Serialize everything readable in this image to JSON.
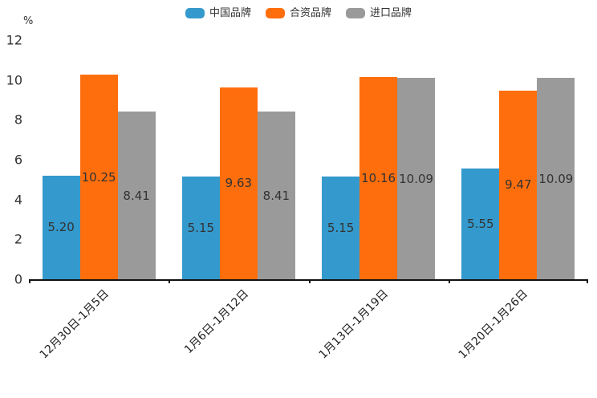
{
  "chart_data": {
    "type": "bar",
    "unit_label": "%",
    "categories": [
      "12月30日-1月5日",
      "1月6日-1月12日",
      "1月13日-1月19日",
      "1月20日-1月26日"
    ],
    "series": [
      {
        "name": "中国品牌",
        "color": "#3499CC",
        "values": [
          5.2,
          5.15,
          5.15,
          5.55
        ]
      },
      {
        "name": "合资品牌",
        "color": "#FF6E0C",
        "values": [
          10.25,
          9.63,
          10.16,
          9.47
        ]
      },
      {
        "name": "进口品牌",
        "color": "#9A9A9A",
        "values": [
          8.41,
          8.41,
          10.09,
          10.09
        ]
      }
    ],
    "ylim": [
      0,
      12
    ],
    "yticks": [
      0,
      2,
      4,
      6,
      8,
      10,
      12
    ],
    "grid": false,
    "axis_color": "#111111",
    "label_color": "#333333",
    "legend_position": "top",
    "value_label_position": "inside-center",
    "value_label_decimals": 2
  }
}
